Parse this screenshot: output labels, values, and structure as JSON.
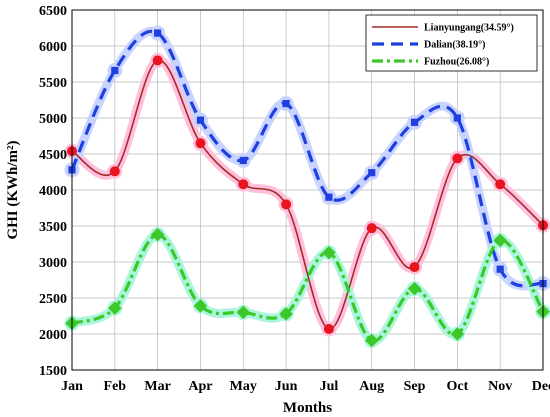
{
  "chart_data": {
    "type": "line",
    "xlabel": "Months",
    "ylabel": "GHI (KWh/m²)",
    "categories": [
      "Jan",
      "Feb",
      "Mar",
      "Apr",
      "May",
      "Jun",
      "Jul",
      "Aug",
      "Sep",
      "Oct",
      "Nov",
      "Dec"
    ],
    "ylim": [
      1500,
      6500
    ],
    "yticks": [
      1500,
      2000,
      2500,
      3000,
      3500,
      4000,
      4500,
      5000,
      5500,
      6000,
      6500
    ],
    "grid": true,
    "legend_position": "top-right",
    "series": [
      {
        "name": "Lianyungang(34.59°)",
        "color": "#a52a2a",
        "marker_color": "#e8141e",
        "glow": "#ffc0dc",
        "marker": "circle",
        "dash": "solid",
        "values": [
          4540,
          4260,
          5800,
          4650,
          4080,
          3800,
          2070,
          3470,
          2930,
          4440,
          4080,
          3510
        ]
      },
      {
        "name": "Dalian(38.19°)",
        "color": "#1f3fe0",
        "marker_color": "#1f3fe0",
        "glow": "#c8d4ff",
        "marker": "square",
        "dash": "dashed",
        "values": [
          4280,
          5660,
          6180,
          4970,
          4410,
          5200,
          3900,
          4240,
          4940,
          5000,
          2900,
          2700
        ]
      },
      {
        "name": "Fuzhou(26.08°)",
        "color": "#3cc828",
        "marker_color": "#3cc828",
        "glow": "#aaf5dc",
        "marker": "diamond",
        "dash": "dashdot",
        "values": [
          2150,
          2360,
          3380,
          2390,
          2300,
          2280,
          3130,
          1910,
          2630,
          2000,
          3300,
          2310
        ]
      }
    ]
  }
}
